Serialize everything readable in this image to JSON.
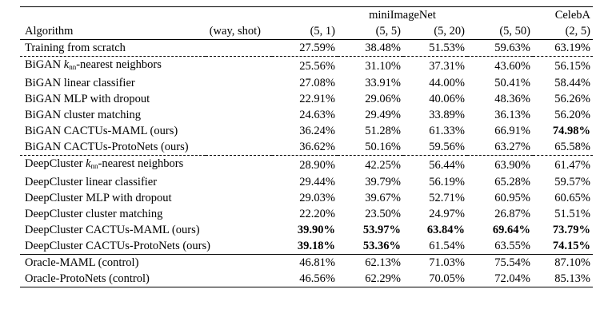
{
  "header": {
    "group1": "miniImageNet",
    "group2": "CelebA",
    "algorithm_label": "Algorithm",
    "wayshot_label": "(way, shot)",
    "columns": [
      "(5, 1)",
      "(5, 5)",
      "(5, 20)",
      "(5, 50)",
      "(2, 5)"
    ]
  },
  "sections": [
    {
      "rows": [
        {
          "name": "Training from scratch",
          "values": [
            "27.59%",
            "38.48%",
            "51.53%",
            "59.63%",
            "63.19%"
          ],
          "bold": [
            false,
            false,
            false,
            false,
            false
          ]
        }
      ]
    },
    {
      "rows": [
        {
          "prefix": "BiGAN ",
          "k": "k",
          "sub": "nn",
          "name": "-nearest neighbors",
          "values": [
            "25.56%",
            "31.10%",
            "37.31%",
            "43.60%",
            "56.15%"
          ],
          "bold": [
            false,
            false,
            false,
            false,
            false
          ]
        },
        {
          "name": "BiGAN linear classifier",
          "values": [
            "27.08%",
            "33.91%",
            "44.00%",
            "50.41%",
            "58.44%"
          ],
          "bold": [
            false,
            false,
            false,
            false,
            false
          ]
        },
        {
          "name": "BiGAN MLP with dropout",
          "values": [
            "22.91%",
            "29.06%",
            "40.06%",
            "48.36%",
            "56.26%"
          ],
          "bold": [
            false,
            false,
            false,
            false,
            false
          ]
        },
        {
          "name": "BiGAN cluster matching",
          "values": [
            "24.63%",
            "29.49%",
            "33.89%",
            "36.13%",
            "56.20%"
          ],
          "bold": [
            false,
            false,
            false,
            false,
            false
          ]
        },
        {
          "name": "BiGAN CACTUs-MAML (ours)",
          "values": [
            "36.24%",
            "51.28%",
            "61.33%",
            "66.91%",
            "74.98%"
          ],
          "bold": [
            false,
            false,
            false,
            false,
            true
          ]
        },
        {
          "name": "BiGAN CACTUs-ProtoNets (ours)",
          "values": [
            "36.62%",
            "50.16%",
            "59.56%",
            "63.27%",
            "65.58%"
          ],
          "bold": [
            false,
            false,
            false,
            false,
            false
          ]
        }
      ]
    },
    {
      "rows": [
        {
          "prefix": "DeepCluster ",
          "k": "k",
          "sub": "nn",
          "name": "-nearest neighbors",
          "values": [
            "28.90%",
            "42.25%",
            "56.44%",
            "63.90%",
            "61.47%"
          ],
          "bold": [
            false,
            false,
            false,
            false,
            false
          ]
        },
        {
          "name": "DeepCluster linear classifier",
          "values": [
            "29.44%",
            "39.79%",
            "56.19%",
            "65.28%",
            "59.57%"
          ],
          "bold": [
            false,
            false,
            false,
            false,
            false
          ]
        },
        {
          "name": "DeepCluster MLP with dropout",
          "values": [
            "29.03%",
            "39.67%",
            "52.71%",
            "60.95%",
            "60.65%"
          ],
          "bold": [
            false,
            false,
            false,
            false,
            false
          ]
        },
        {
          "name": "DeepCluster cluster matching",
          "values": [
            "22.20%",
            "23.50%",
            "24.97%",
            "26.87%",
            "51.51%"
          ],
          "bold": [
            false,
            false,
            false,
            false,
            false
          ]
        },
        {
          "name": "DeepCluster CACTUs-MAML (ours)",
          "values": [
            "39.90%",
            "53.97%",
            "63.84%",
            "69.64%",
            "73.79%"
          ],
          "bold": [
            true,
            true,
            true,
            true,
            true
          ]
        },
        {
          "name": "DeepCluster CACTUs-ProtoNets (ours)",
          "values": [
            "39.18%",
            "53.36%",
            "61.54%",
            "63.55%",
            "74.15%"
          ],
          "bold": [
            true,
            true,
            false,
            false,
            true
          ]
        }
      ]
    },
    {
      "rows": [
        {
          "name": "Oracle-MAML (control)",
          "values": [
            "46.81%",
            "62.13%",
            "71.03%",
            "75.54%",
            "87.10%"
          ],
          "bold": [
            false,
            false,
            false,
            false,
            false
          ]
        },
        {
          "name": "Oracle-ProtoNets (control)",
          "values": [
            "46.56%",
            "62.29%",
            "70.05%",
            "72.04%",
            "85.13%"
          ],
          "bold": [
            false,
            false,
            false,
            false,
            false
          ]
        }
      ]
    }
  ]
}
